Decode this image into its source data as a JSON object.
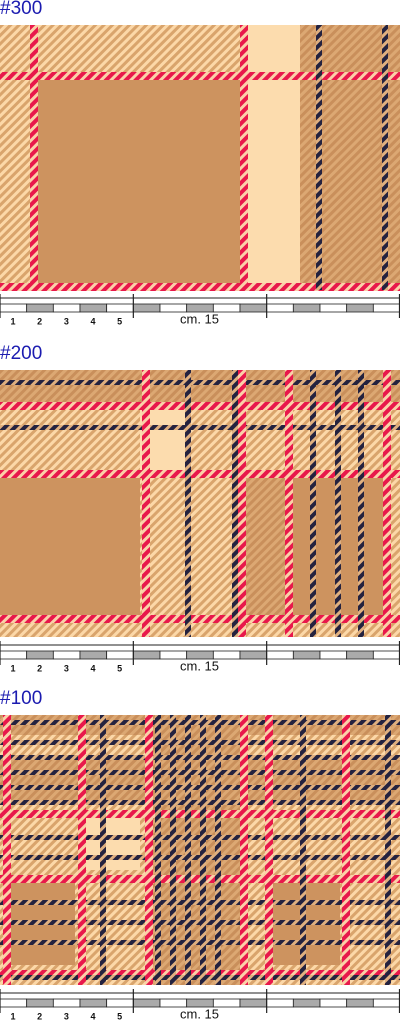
{
  "sections": [
    {
      "label": "#300",
      "ruler": {
        "numbers": [
          1,
          2,
          3,
          4,
          5
        ],
        "unit": "cm. 15"
      }
    },
    {
      "label": "#200",
      "ruler": {
        "numbers": [
          1,
          2,
          3,
          4,
          5
        ],
        "unit": "cm. 15"
      }
    },
    {
      "label": "#100",
      "ruler": {
        "numbers": [
          1,
          2,
          3,
          4,
          5
        ],
        "unit": "cm. 15"
      }
    }
  ]
}
